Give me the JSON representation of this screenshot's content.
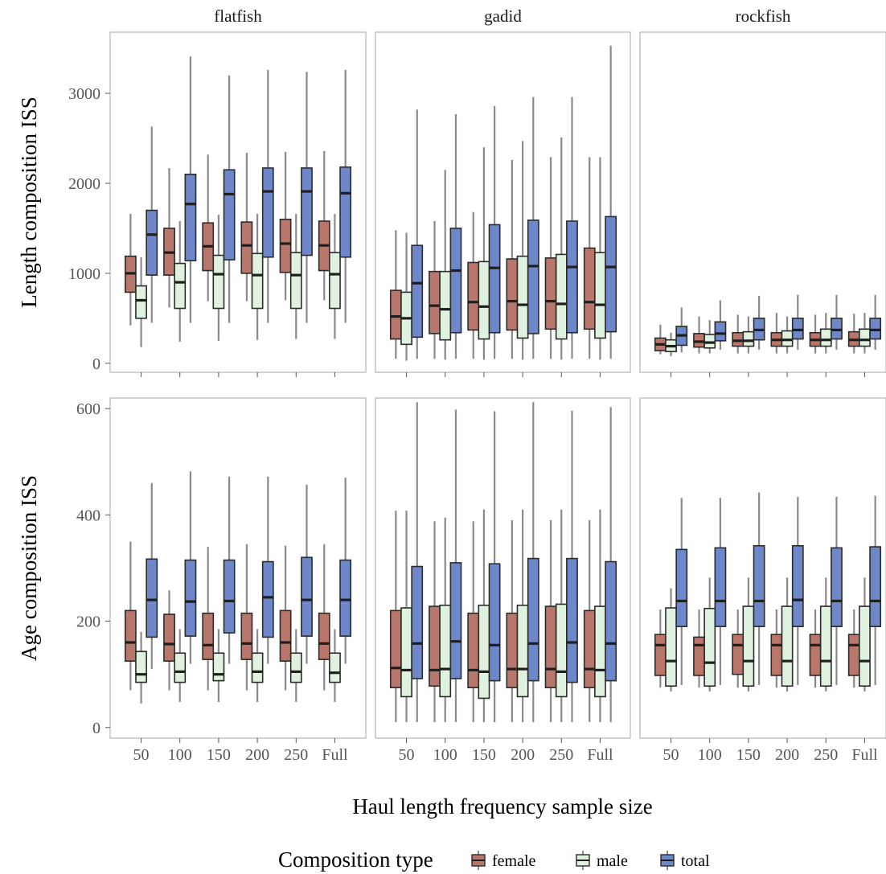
{
  "chart_data": {
    "type": "box",
    "xlabel": "Haul length frequency sample size",
    "categories": [
      "50",
      "100",
      "150",
      "200",
      "250",
      "Full"
    ],
    "panel_titles": [
      "flatfish",
      "gadid",
      "rockfish"
    ],
    "legend": {
      "title": "Composition type",
      "placement": "bottom",
      "entries": [
        {
          "name": "female",
          "color": "#b9776b"
        },
        {
          "name": "male",
          "color": "#dff2df"
        },
        {
          "name": "total",
          "color": "#6e87c8"
        }
      ]
    },
    "rows": [
      {
        "ylabel": "Length composition ISS",
        "ylim": [
          -100,
          3680
        ],
        "yticks": [
          0,
          1000,
          2000,
          3000
        ],
        "panels": [
          {
            "name": "flatfish",
            "series": {
              "female": [
                [
                  420,
                  790,
                  1000,
                  1190,
                  1660
                ],
                [
                  620,
                  980,
                  1230,
                  1500,
                  2170
                ],
                [
                  690,
                  1030,
                  1300,
                  1560,
                  2320
                ],
                [
                  690,
                  1000,
                  1310,
                  1570,
                  2340
                ],
                [
                  700,
                  1010,
                  1330,
                  1600,
                  2350
                ],
                [
                  700,
                  1030,
                  1310,
                  1580,
                  2360
                ]
              ],
              "male": [
                [
                  180,
                  500,
                  700,
                  860,
                  1180
                ],
                [
                  240,
                  610,
                  900,
                  1110,
                  1580
                ],
                [
                  250,
                  610,
                  990,
                  1200,
                  1650
                ],
                [
                  260,
                  610,
                  980,
                  1220,
                  1660
                ],
                [
                  270,
                  610,
                  980,
                  1230,
                  1660
                ],
                [
                  270,
                  610,
                  990,
                  1230,
                  1660
                ]
              ],
              "total": [
                [
                  450,
                  980,
                  1430,
                  1700,
                  2630
                ],
                [
                  450,
                  1140,
                  1770,
                  2100,
                  3410
                ],
                [
                  450,
                  1150,
                  1880,
                  2150,
                  3200
                ],
                [
                  450,
                  1180,
                  1910,
                  2170,
                  3260
                ],
                [
                  450,
                  1200,
                  1910,
                  2170,
                  3240
                ],
                [
                  450,
                  1180,
                  1890,
                  2180,
                  3260
                ]
              ]
            }
          },
          {
            "name": "gadid",
            "series": {
              "female": [
                [
                  50,
                  270,
                  520,
                  810,
                  1480
                ],
                [
                  50,
                  330,
                  640,
                  1020,
                  1580
                ],
                [
                  50,
                  370,
                  680,
                  1120,
                  1680
                ],
                [
                  50,
                  370,
                  690,
                  1160,
                  2260
                ],
                [
                  50,
                  380,
                  690,
                  1170,
                  2290
                ],
                [
                  50,
                  380,
                  680,
                  1280,
                  2290
                ]
              ],
              "male": [
                [
                  30,
                  210,
                  500,
                  790,
                  1450
                ],
                [
                  40,
                  260,
                  600,
                  1020,
                  2150
                ],
                [
                  40,
                  270,
                  630,
                  1130,
                  2400
                ],
                [
                  40,
                  280,
                  650,
                  1190,
                  2470
                ],
                [
                  40,
                  270,
                  660,
                  1210,
                  2510
                ],
                [
                  40,
                  280,
                  650,
                  1230,
                  2290
                ]
              ],
              "total": [
                [
                  50,
                  290,
                  890,
                  1310,
                  2820
                ],
                [
                  50,
                  340,
                  1030,
                  1500,
                  2770
                ],
                [
                  50,
                  340,
                  1060,
                  1540,
                  2860
                ],
                [
                  50,
                  330,
                  1080,
                  1590,
                  2960
                ],
                [
                  50,
                  340,
                  1070,
                  1580,
                  2960
                ],
                [
                  50,
                  350,
                  1070,
                  1630,
                  3530
                ]
              ]
            }
          },
          {
            "name": "rockfish",
            "series": {
              "female": [
                [
                  100,
                  140,
                  210,
                  280,
                  430
                ],
                [
                  110,
                  180,
                  240,
                  330,
                  520
                ],
                [
                  110,
                  190,
                  250,
                  340,
                  540
                ],
                [
                  110,
                  190,
                  260,
                  340,
                  560
                ],
                [
                  110,
                  190,
                  260,
                  340,
                  540
                ],
                [
                  110,
                  190,
                  260,
                  350,
                  550
                ]
              ],
              "male": [
                [
                  80,
                  130,
                  190,
                  260,
                  340
                ],
                [
                  110,
                  170,
                  230,
                  320,
                  480
                ],
                [
                  110,
                  190,
                  250,
                  350,
                  520
                ],
                [
                  110,
                  190,
                  260,
                  360,
                  520
                ],
                [
                  110,
                  190,
                  260,
                  380,
                  560
                ],
                [
                  110,
                  190,
                  260,
                  380,
                  560
                ]
              ],
              "total": [
                [
                  120,
                  200,
                  310,
                  410,
                  620
                ],
                [
                  150,
                  250,
                  330,
                  460,
                  700
                ],
                [
                  150,
                  260,
                  370,
                  500,
                  750
                ],
                [
                  150,
                  270,
                  370,
                  500,
                  760
                ],
                [
                  150,
                  270,
                  370,
                  500,
                  760
                ],
                [
                  150,
                  270,
                  370,
                  500,
                  760
                ]
              ]
            }
          }
        ]
      },
      {
        "ylabel": "Age composition ISS",
        "ylim": [
          -20,
          620
        ],
        "yticks": [
          0,
          200,
          400,
          600
        ],
        "panels": [
          {
            "name": "flatfish",
            "series": {
              "female": [
                [
                  70,
                  125,
                  160,
                  220,
                  350
                ],
                [
                  70,
                  125,
                  157,
                  213,
                  258
                ],
                [
                  70,
                  128,
                  155,
                  215,
                  340
                ],
                [
                  70,
                  128,
                  158,
                  215,
                  345
                ],
                [
                  70,
                  125,
                  160,
                  220,
                  342
                ],
                [
                  70,
                  128,
                  158,
                  215,
                  345
                ]
              ],
              "male": [
                [
                  45,
                  85,
                  100,
                  143,
                  180
                ],
                [
                  48,
                  85,
                  105,
                  140,
                  185
                ],
                [
                  48,
                  88,
                  100,
                  140,
                  185
                ],
                [
                  48,
                  85,
                  105,
                  140,
                  185
                ],
                [
                  48,
                  85,
                  105,
                  140,
                  185
                ],
                [
                  48,
                  85,
                  103,
                  140,
                  185
                ]
              ],
              "total": [
                [
                  110,
                  170,
                  240,
                  317,
                  460
                ],
                [
                  120,
                  172,
                  237,
                  315,
                  482
                ],
                [
                  120,
                  178,
                  238,
                  315,
                  472
                ],
                [
                  120,
                  170,
                  245,
                  312,
                  472
                ],
                [
                  120,
                  172,
                  240,
                  320,
                  457
                ],
                [
                  120,
                  172,
                  240,
                  315,
                  470
                ]
              ]
            }
          },
          {
            "name": "gadid",
            "series": {
              "female": [
                [
                  10,
                  75,
                  112,
                  220,
                  408
                ],
                [
                  10,
                  78,
                  108,
                  228,
                  388
                ],
                [
                  10,
                  75,
                  108,
                  215,
                  388
                ],
                [
                  10,
                  75,
                  110,
                  215,
                  390
                ],
                [
                  10,
                  75,
                  110,
                  228,
                  390
                ],
                [
                  10,
                  75,
                  110,
                  220,
                  390
                ]
              ],
              "male": [
                [
                  10,
                  58,
                  108,
                  225,
                  408
                ],
                [
                  10,
                  58,
                  110,
                  230,
                  395
                ],
                [
                  10,
                  55,
                  105,
                  230,
                  410
                ],
                [
                  10,
                  58,
                  110,
                  230,
                  410
                ],
                [
                  10,
                  58,
                  105,
                  232,
                  410
                ],
                [
                  10,
                  58,
                  108,
                  228,
                  410
                ]
              ],
              "total": [
                [
                  10,
                  92,
                  158,
                  303,
                  612
                ],
                [
                  10,
                  92,
                  162,
                  310,
                  598
                ],
                [
                  10,
                  88,
                  155,
                  308,
                  595
                ],
                [
                  10,
                  88,
                  158,
                  318,
                  612
                ],
                [
                  10,
                  85,
                  160,
                  318,
                  596
                ],
                [
                  10,
                  88,
                  158,
                  312,
                  603
                ]
              ]
            }
          },
          {
            "name": "rockfish",
            "series": {
              "female": [
                [
                  75,
                  98,
                  155,
                  175,
                  222
                ],
                [
                  75,
                  98,
                  155,
                  170,
                  222
                ],
                [
                  75,
                  100,
                  155,
                  175,
                  222
                ],
                [
                  75,
                  98,
                  155,
                  175,
                  222
                ],
                [
                  75,
                  98,
                  155,
                  175,
                  222
                ],
                [
                  75,
                  98,
                  155,
                  175,
                  222
                ]
              ],
              "male": [
                [
                  68,
                  78,
                  125,
                  225,
                  262
                ],
                [
                  68,
                  78,
                  122,
                  224,
                  282
                ],
                [
                  68,
                  78,
                  125,
                  228,
                  282
                ],
                [
                  68,
                  78,
                  125,
                  228,
                  282
                ],
                [
                  68,
                  78,
                  125,
                  228,
                  282
                ],
                [
                  68,
                  78,
                  125,
                  228,
                  282
                ]
              ],
              "total": [
                [
                  80,
                  190,
                  238,
                  335,
                  432
                ],
                [
                  80,
                  190,
                  238,
                  338,
                  432
                ],
                [
                  80,
                  190,
                  238,
                  342,
                  442
                ],
                [
                  80,
                  190,
                  240,
                  342,
                  434
                ],
                [
                  80,
                  190,
                  238,
                  338,
                  434
                ],
                [
                  80,
                  190,
                  238,
                  340,
                  436
                ]
              ]
            }
          }
        ]
      }
    ]
  }
}
